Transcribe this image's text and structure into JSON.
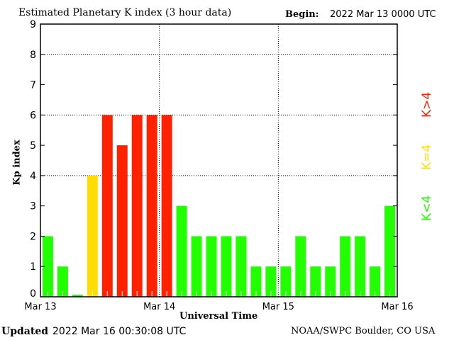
{
  "header": {
    "title": "Estimated Planetary K index (3 hour data)",
    "begin_label": "Begin:",
    "begin_value": "2022 Mar 13 0000 UTC"
  },
  "footer": {
    "updated_label": "Updated",
    "updated_value": "2022 Mar 16 00:30:08 UTC",
    "credit": "NOAA/SWPC Boulder, CO USA"
  },
  "legend": [
    {
      "label": "K<4",
      "color": "#22ff00"
    },
    {
      "label": "K=4",
      "color": "#ffdd00"
    },
    {
      "label": "K>4",
      "color": "#ff2200"
    }
  ],
  "chart_data": {
    "type": "bar",
    "title": "Estimated Planetary K index (3 hour data)",
    "xlabel": "Universal Time",
    "ylabel": "Kp index",
    "ylim": [
      0,
      9
    ],
    "yticks": [
      "0",
      "1",
      "2",
      "3",
      "4",
      "5",
      "6",
      "7",
      "8",
      "9"
    ],
    "xticks": [
      "Mar 13",
      "Mar 14",
      "Mar 15",
      "Mar 16"
    ],
    "grid": "dotted at Kp 4, 6, 8 and day boundaries",
    "values": [
      2,
      1,
      0,
      4,
      6,
      5,
      6,
      6,
      6,
      3,
      2,
      2,
      2,
      2,
      1,
      1,
      1,
      2,
      1,
      1,
      2,
      2,
      1,
      3
    ],
    "colors": {
      "below4": "#22ff00",
      "equal4": "#ffdd00",
      "above4": "#ff2200"
    }
  }
}
